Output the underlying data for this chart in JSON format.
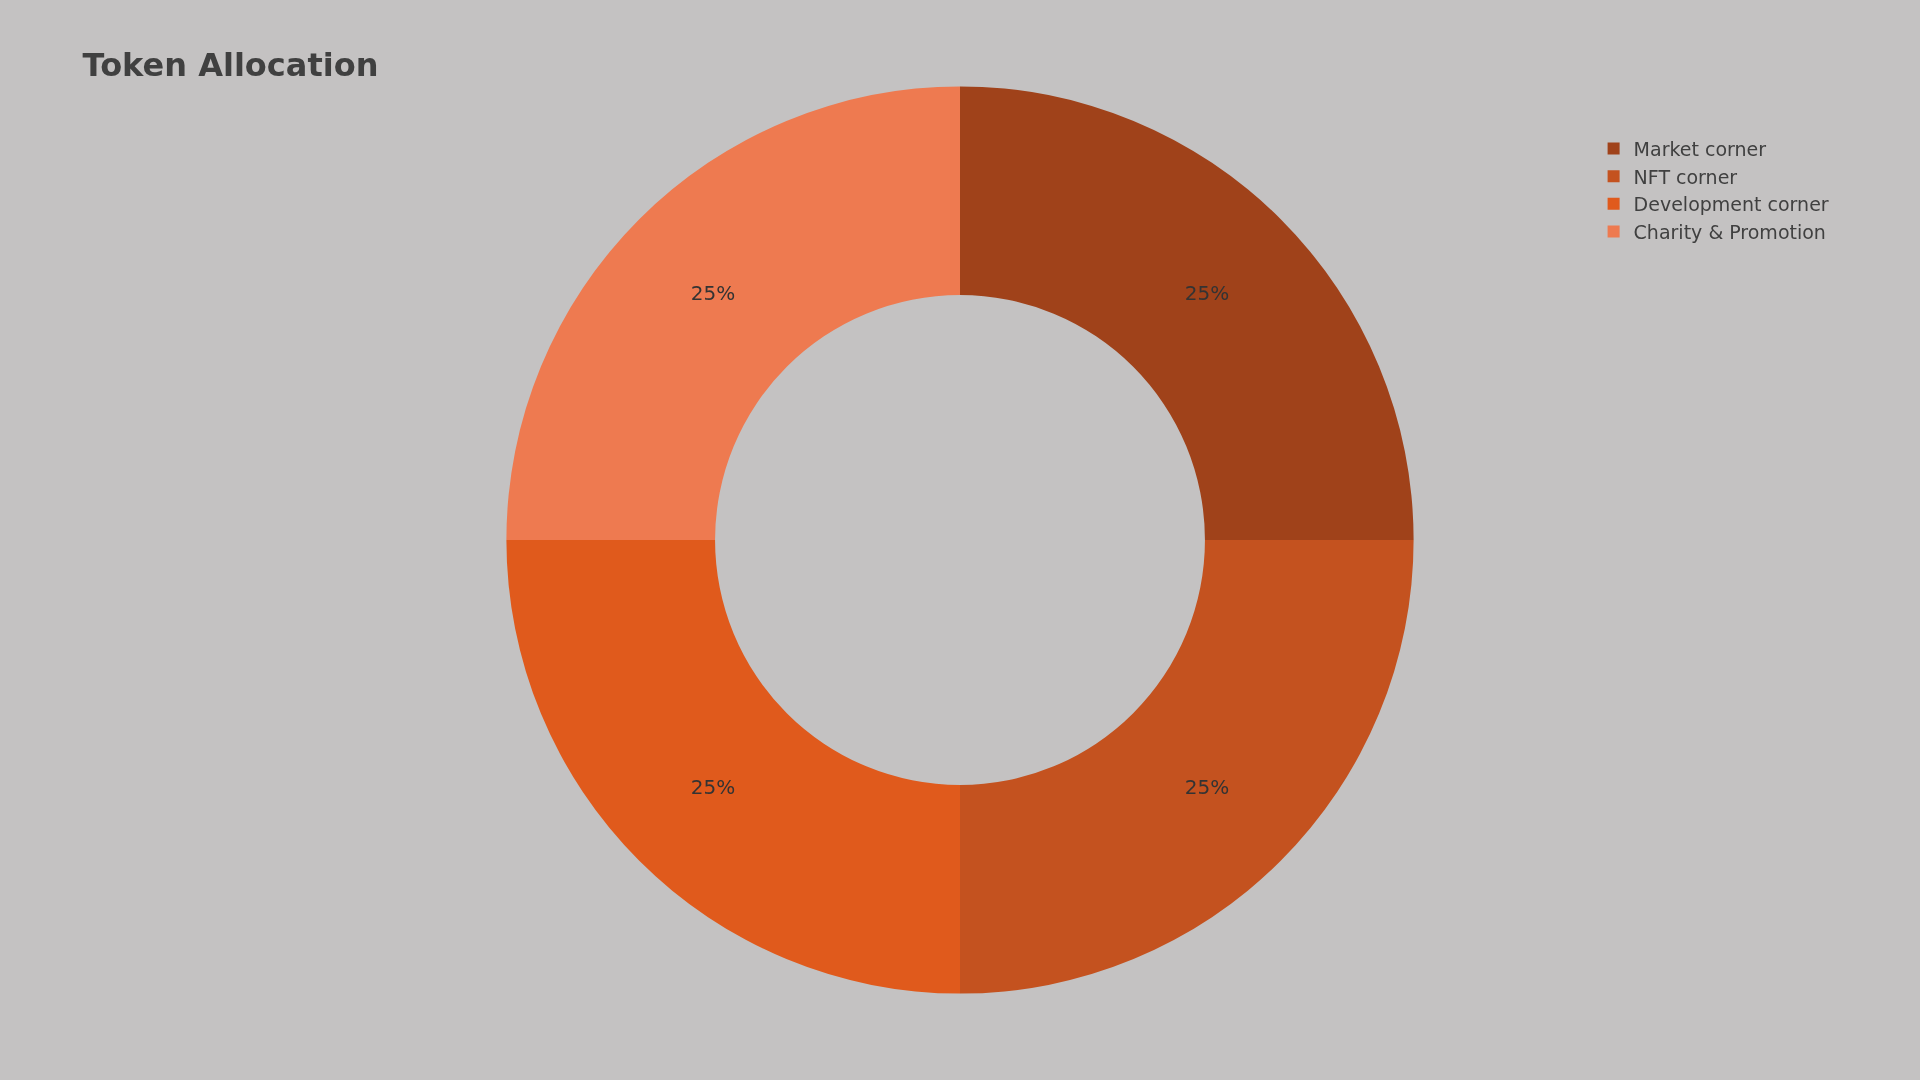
{
  "chart_data": {
    "type": "donut",
    "title": "Token Allocation",
    "categories": [
      "Market corner",
      "NFT corner",
      "Development corner",
      "Charity & Promotion"
    ],
    "values": [
      25,
      25,
      25,
      25
    ],
    "colors": [
      "#a0421a",
      "#c4521f",
      "#e05a1c",
      "#ee7a50"
    ],
    "value_labels": [
      "25%",
      "25%",
      "25%",
      "25%"
    ],
    "legend": "top right"
  }
}
